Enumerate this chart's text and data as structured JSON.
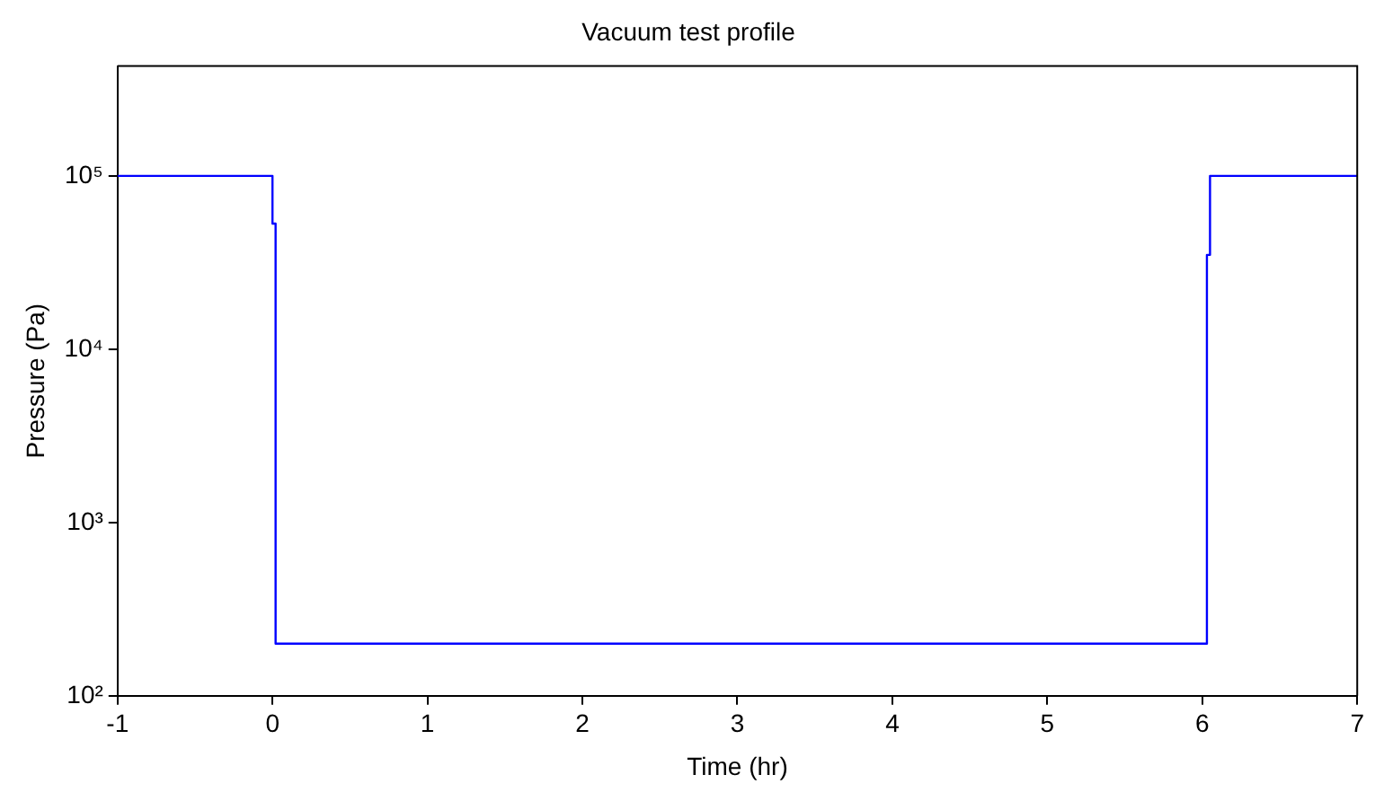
{
  "chart_data": {
    "type": "line",
    "title": "Vacuum test profile",
    "xlabel": "Time (hr)",
    "ylabel": "Pressure (Pa)",
    "series": [
      {
        "color": "#0000ff",
        "x": [
          -1,
          0,
          0,
          0.02,
          0.02,
          6.03,
          6.03,
          6.05,
          6.05,
          7
        ],
        "values": [
          100000,
          100000,
          53000,
          53000,
          200,
          200,
          35000,
          35000,
          100000,
          100000
        ]
      }
    ],
    "xlim": [
      -1,
      7
    ],
    "xticks": [
      -1,
      0,
      1,
      2,
      3,
      4,
      5,
      6,
      7
    ],
    "ylim": [
      100,
      430000
    ],
    "yticks": [
      {
        "value": 100,
        "label": "10²"
      },
      {
        "value": 1000,
        "label": "10³"
      },
      {
        "value": 10000,
        "label": "10⁴"
      },
      {
        "value": 100000,
        "label": "10⁵"
      }
    ],
    "log": "y",
    "grid": false,
    "legend": false,
    "marker": "none",
    "line_style": "solid"
  }
}
